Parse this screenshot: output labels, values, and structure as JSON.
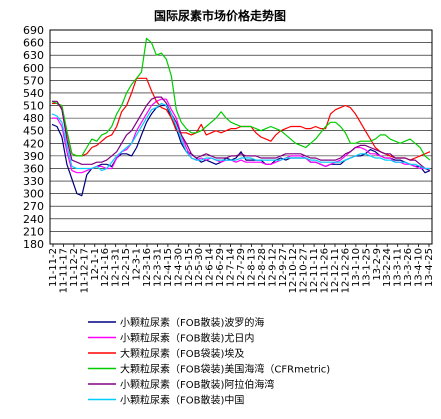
{
  "chart_data": {
    "type": "line",
    "title": "国际尿素市场价格走势图",
    "ylim": [
      180,
      690
    ],
    "y_ticks": [
      180,
      210,
      240,
      270,
      300,
      330,
      360,
      390,
      420,
      450,
      480,
      510,
      540,
      570,
      600,
      630,
      660,
      690
    ],
    "x_ticks": [
      "11-11-2",
      "11-11-17",
      "11-12-2",
      "11-12-17",
      "12-1-1",
      "12-1-16",
      "12-1-31",
      "12-2-15",
      "12-3-1",
      "12-3-16",
      "12-3-31",
      "12-4-15",
      "12-4-30",
      "12-5-15",
      "12-5-30",
      "12-6-14",
      "12-6-29",
      "12-7-14",
      "12-7-29",
      "12-8-13",
      "12-8-28",
      "12-9-12",
      "12-9-27",
      "12-10-12",
      "12-10-27",
      "12-11-11",
      "12-11-26",
      "12-12-11",
      "12-12-26",
      "13-1-10",
      "13-1-25",
      "13-2-9",
      "13-2-24",
      "13-3-11",
      "13-3-26",
      "13-4-10",
      "13-4-25"
    ],
    "grid": true,
    "legend_position": "bottom",
    "series": [
      {
        "name": "小颗粒尿素（FOB散装)波罗的海",
        "color": "#000080",
        "values": [
          465,
          460,
          435,
          370,
          335,
          300,
          295,
          345,
          360,
          365,
          370,
          370,
          365,
          385,
          395,
          395,
          390,
          410,
          440,
          470,
          490,
          505,
          510,
          510,
          480,
          455,
          420,
          400,
          395,
          385,
          375,
          380,
          375,
          370,
          375,
          385,
          380,
          385,
          400,
          380,
          380,
          380,
          380,
          370,
          370,
          380,
          385,
          380,
          385,
          385,
          385,
          385,
          375,
          375,
          370,
          365,
          370,
          370,
          370,
          380,
          385,
          390,
          390,
          395,
          405,
          400,
          390,
          385,
          385,
          380,
          380,
          375,
          370,
          365,
          365,
          350,
          355
        ]
      },
      {
        "name": "小颗粒尿素（FOB散装)尤日内",
        "color": "#ff00ff",
        "values": [
          480,
          480,
          460,
          400,
          355,
          350,
          350,
          355,
          360,
          365,
          365,
          360,
          360,
          385,
          400,
          405,
          420,
          450,
          470,
          490,
          510,
          520,
          525,
          525,
          500,
          480,
          440,
          410,
          385,
          380,
          385,
          380,
          385,
          380,
          375,
          380,
          380,
          375,
          380,
          375,
          375,
          375,
          375,
          370,
          370,
          375,
          380,
          385,
          390,
          390,
          390,
          385,
          375,
          375,
          370,
          365,
          370,
          375,
          380,
          390,
          400,
          410,
          410,
          405,
          395,
          395,
          390,
          385,
          385,
          375,
          375,
          370,
          370,
          365,
          360,
          360,
          360
        ]
      },
      {
        "name": "大颗粒尿素（FOB袋装)埃及",
        "color": "#ff0000",
        "values": [
          515,
          515,
          505,
          445,
          395,
          390,
          390,
          395,
          410,
          415,
          425,
          435,
          440,
          460,
          495,
          510,
          540,
          575,
          575,
          575,
          545,
          520,
          505,
          500,
          480,
          450,
          445,
          445,
          440,
          445,
          465,
          440,
          445,
          450,
          445,
          450,
          455,
          455,
          460,
          460,
          460,
          445,
          435,
          430,
          425,
          440,
          450,
          455,
          460,
          460,
          460,
          455,
          455,
          460,
          455,
          455,
          490,
          500,
          505,
          510,
          505,
          490,
          470,
          450,
          430,
          410,
          400,
          395,
          390,
          385,
          385,
          385,
          380,
          385,
          390,
          395,
          400
        ]
      },
      {
        "name": "大颗粒尿素（FOB袋装)美国海湾（CFRmetric)",
        "color": "#00cc00",
        "values": [
          520,
          515,
          510,
          450,
          395,
          390,
          390,
          410,
          430,
          425,
          440,
          445,
          460,
          490,
          510,
          540,
          560,
          575,
          590,
          670,
          660,
          630,
          635,
          620,
          580,
          500,
          470,
          455,
          445,
          445,
          450,
          460,
          470,
          480,
          495,
          480,
          470,
          465,
          460,
          460,
          460,
          455,
          450,
          455,
          460,
          455,
          450,
          440,
          430,
          420,
          415,
          410,
          420,
          430,
          445,
          460,
          470,
          470,
          460,
          445,
          420,
          420,
          425,
          425,
          425,
          430,
          440,
          440,
          430,
          425,
          420,
          425,
          430,
          420,
          410,
          390,
          380
        ]
      },
      {
        "name": "小颗粒尿素（FOB散装)阿拉伯海湾",
        "color": "#800080",
        "values": [
          520,
          520,
          500,
          430,
          380,
          375,
          370,
          370,
          370,
          375,
          375,
          380,
          390,
          400,
          420,
          440,
          450,
          470,
          490,
          510,
          525,
          530,
          530,
          515,
          490,
          470,
          440,
          420,
          395,
          385,
          390,
          395,
          390,
          385,
          385,
          385,
          390,
          390,
          395,
          390,
          390,
          390,
          385,
          385,
          385,
          385,
          390,
          395,
          395,
          395,
          395,
          390,
          385,
          385,
          380,
          380,
          380,
          380,
          385,
          395,
          400,
          410,
          415,
          415,
          410,
          405,
          400,
          395,
          395,
          385,
          385,
          385,
          380,
          380,
          370,
          360,
          355
        ]
      },
      {
        "name": "小颗粒尿素（FOB散装)中国",
        "color": "#00ccff",
        "values": [
          490,
          485,
          470,
          415,
          365,
          360,
          360,
          360,
          360,
          365,
          355,
          360,
          375,
          390,
          400,
          410,
          420,
          440,
          460,
          480,
          500,
          505,
          515,
          510,
          490,
          460,
          430,
          400,
          385,
          380,
          380,
          385,
          385,
          380,
          380,
          380,
          380,
          380,
          385,
          385,
          385,
          380,
          380,
          380,
          380,
          380,
          380,
          385,
          385,
          385,
          385,
          385,
          380,
          380,
          375,
          375,
          375,
          375,
          375,
          380,
          385,
          390,
          395,
          395,
          390,
          385,
          385,
          380,
          380,
          375,
          375,
          375,
          370,
          370,
          365,
          360,
          360
        ]
      }
    ]
  }
}
